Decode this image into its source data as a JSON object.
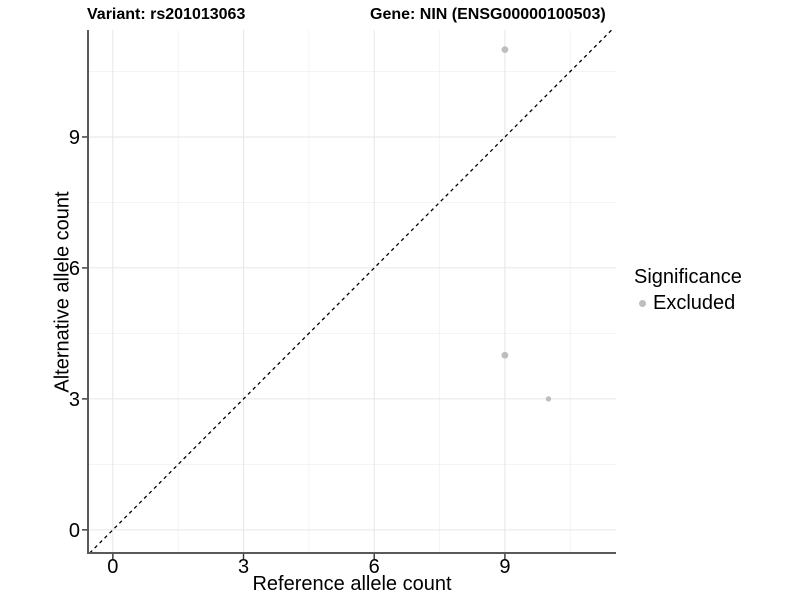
{
  "header": {
    "variant_title": "Variant: rs201013063",
    "gene_title": "Gene: NIN (ENSG00000100503)"
  },
  "legend": {
    "title": "Significance",
    "items": [
      {
        "label": "Excluded",
        "color": "#bebebe"
      }
    ]
  },
  "chart_data": {
    "type": "scatter",
    "xlabel": "Reference allele count",
    "ylabel": "Alternative allele count",
    "xlim": [
      -0.57,
      11.55
    ],
    "ylim": [
      -0.53,
      11.45
    ],
    "x_ticks": [
      0,
      3,
      6,
      9
    ],
    "y_ticks": [
      0,
      3,
      6,
      9
    ],
    "x_minor_gridlines": [
      1.5,
      4.5,
      7.5,
      10.5
    ],
    "y_minor_gridlines": [
      1.5,
      4.5,
      7.5,
      10.5
    ],
    "grid": "major+minor",
    "legend_position": "right",
    "series": [
      {
        "name": "Excluded",
        "color": "#bebebe",
        "points": [
          {
            "x": 9,
            "y": 11,
            "size": 6.8
          },
          {
            "x": 9,
            "y": 4,
            "size": 6.8
          },
          {
            "x": 10,
            "y": 3,
            "size": 5.4
          }
        ]
      }
    ],
    "identity_line": {
      "slope": 1,
      "intercept": 0,
      "style": "dashed",
      "color": "#000000"
    }
  },
  "style_colors": {
    "background": "#ffffff",
    "grid_major": "#e6e6e6",
    "grid_minor": "#f2f2f2",
    "axis_line": "#595959",
    "tick": "#333333",
    "text": "#000000",
    "point": "#bebebe"
  }
}
